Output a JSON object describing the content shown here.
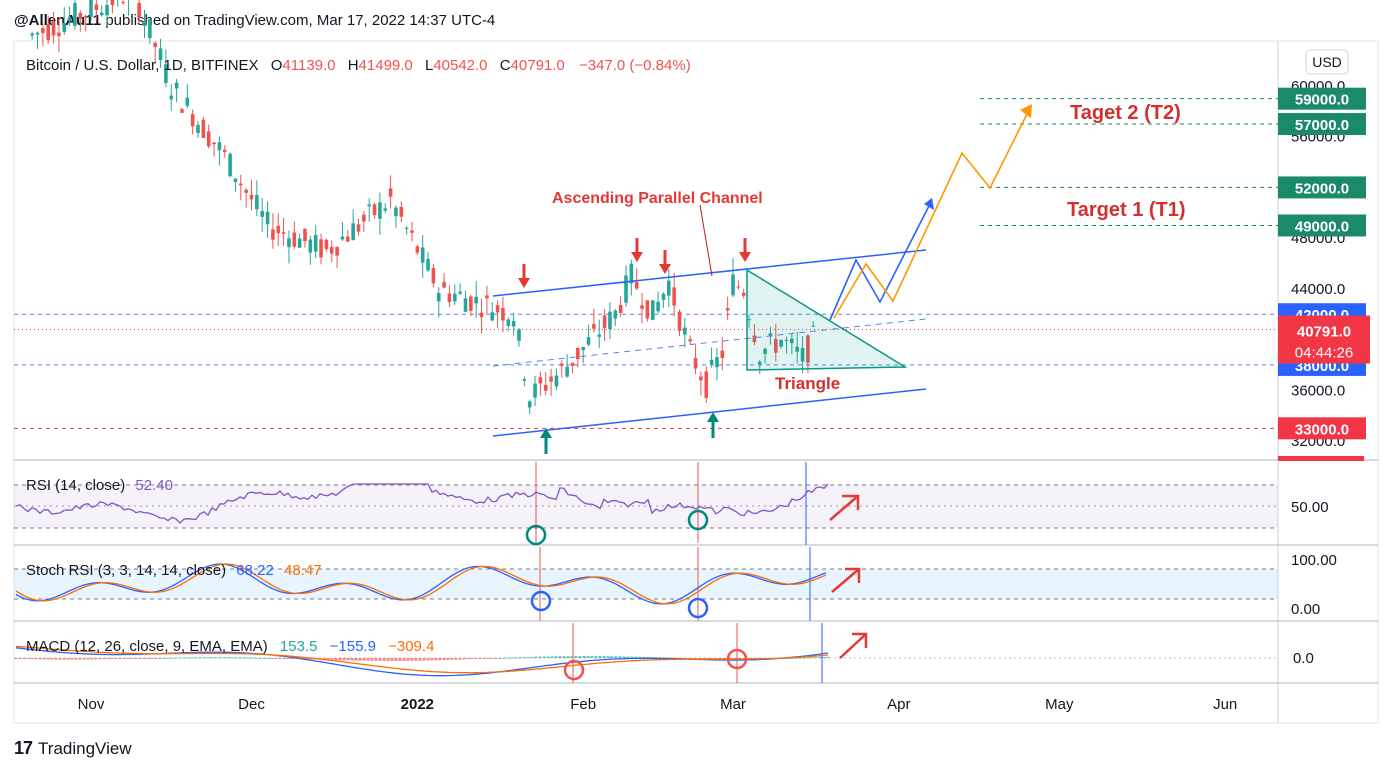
{
  "header": {
    "author": "@AllenAu11",
    "published_text": "published on TradingView.com, Mar 17, 2022 14:37 UTC-4"
  },
  "footer": {
    "brand": "TradingView",
    "logo_text": "17"
  },
  "colors": {
    "up": "#26a69a",
    "down": "#ef5350",
    "channel": "#2962ff",
    "triangle": "#089981",
    "arrow_down": "#e53935",
    "arrow_up": "#00897b",
    "projection": "#ff9800",
    "target_text": "#d32f2f",
    "rsi": "#7e57c2",
    "stoch_k": "#2962ff",
    "stoch_d": "#ff6d00",
    "macd_line": "#2962ff",
    "signal_line": "#ff6d00"
  },
  "chart_data": {
    "type": "candlestick",
    "symbol_line": {
      "name": "Bitcoin / U.S. Dollar, 1D, BITFINEX",
      "o_label": "O",
      "o_value": "41139.0",
      "h_label": "H",
      "h_value": "41499.0",
      "l_label": "L",
      "l_value": "40542.0",
      "c_label": "C",
      "c_value": "40791.0",
      "change": "−347.0 (−0.84%)"
    },
    "currency": "USD",
    "y_axis_ticks": [
      "60000.0",
      "56000.0",
      "48000.0",
      "44000.0",
      "36000.0",
      "32000.0"
    ],
    "x_axis_ticks": [
      "Nov",
      "Dec",
      "2022",
      "Feb",
      "Mar",
      "Apr",
      "May",
      "Jun"
    ],
    "x_range": [
      "2021-10-21",
      "2022-06-08"
    ],
    "last_price": "40791.0",
    "countdown": "04:44:26",
    "price_levels": [
      {
        "label": "59000.0",
        "value": 59000,
        "kind": "target",
        "line": "dashed-green"
      },
      {
        "label": "57000.0",
        "value": 57000,
        "kind": "target",
        "line": "dashed-green"
      },
      {
        "label": "52000.0",
        "value": 52000,
        "kind": "target",
        "line": "dashed-green"
      },
      {
        "label": "49000.0",
        "value": 49000,
        "kind": "target",
        "line": "dashed-green"
      },
      {
        "label": "42000.0",
        "value": 42000,
        "kind": "blue",
        "line": "dashed-blue"
      },
      {
        "label": "38000.0",
        "value": 38000,
        "kind": "blue",
        "line": "dashed-blue"
      },
      {
        "label": "33000.0",
        "value": 33000,
        "kind": "red",
        "line": "dashed-red"
      }
    ],
    "annotations": {
      "target2": "Taget 2 (T2)",
      "target1": "Target 1 (T1)",
      "channel": "Ascending Parallel Channel",
      "triangle": "Triangle"
    },
    "indicators": {
      "rsi": {
        "label": "RSI (14, close)",
        "value": "52.40",
        "level_label": "50.00"
      },
      "stoch_rsi": {
        "label": "Stoch RSI (3, 3, 14, 14, close)",
        "k_value": "68.22",
        "d_value": "48.47",
        "upper_label": "100.00",
        "lower_label": "0.00"
      },
      "macd": {
        "label": "MACD (12, 26, close, 9, EMA, EMA)",
        "hist_value": "153.5",
        "macd_value": "−155.9",
        "signal_value": "−309.4",
        "zero_label": "0.0"
      }
    }
  }
}
